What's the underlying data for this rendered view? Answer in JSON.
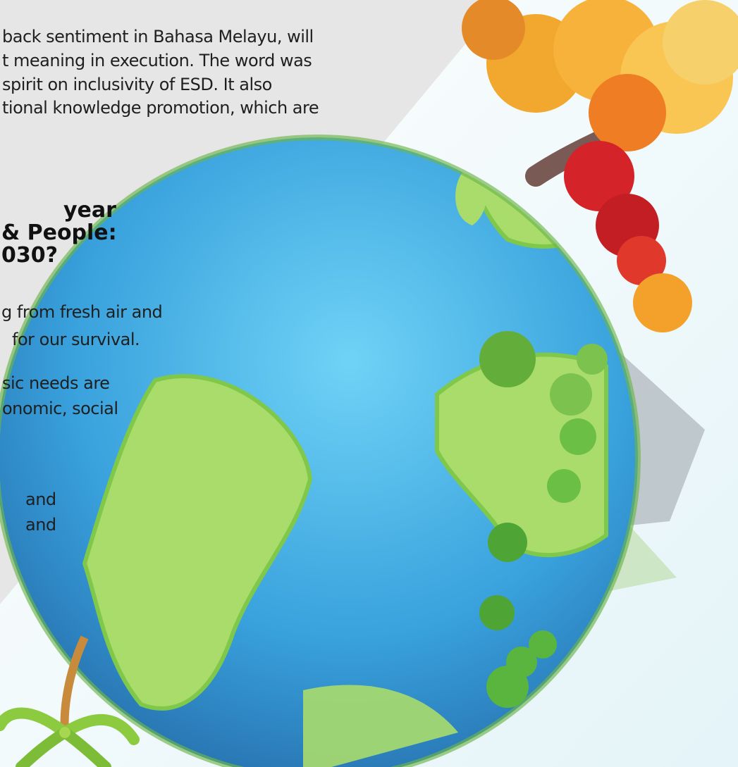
{
  "colors": {
    "panel": "#e6e6e6",
    "ocean_light": "#62c9f1",
    "ocean_dark": "#1f5d9a",
    "land": "#a9dc6b",
    "tree_autumn": "#f4a12c",
    "tree_red": "#d5232a",
    "tree_green": "#63ad3a"
  },
  "icons": [
    "globe-illustration",
    "autumn-tree-icon",
    "red-tree-icon",
    "green-tree-icon",
    "mountain-icon",
    "palm-tree-icon"
  ],
  "paragraph1": {
    "line1": "back sentiment in Bahasa Melayu, will",
    "line2": "t meaning in execution. The word was",
    "line3": "spirit on inclusivity of ESD. It also",
    "line4": "tional knowledge promotion, which are"
  },
  "heading": {
    "line1": "year",
    "line2": "& People:",
    "line3": "030?"
  },
  "paragraph2": {
    "line1": "g from fresh air and",
    "line2": "for our survival."
  },
  "paragraph3": {
    "line1": "sic needs are",
    "line2": "onomic, social"
  },
  "paragraph4": {
    "line1": "and",
    "line2": "and"
  }
}
